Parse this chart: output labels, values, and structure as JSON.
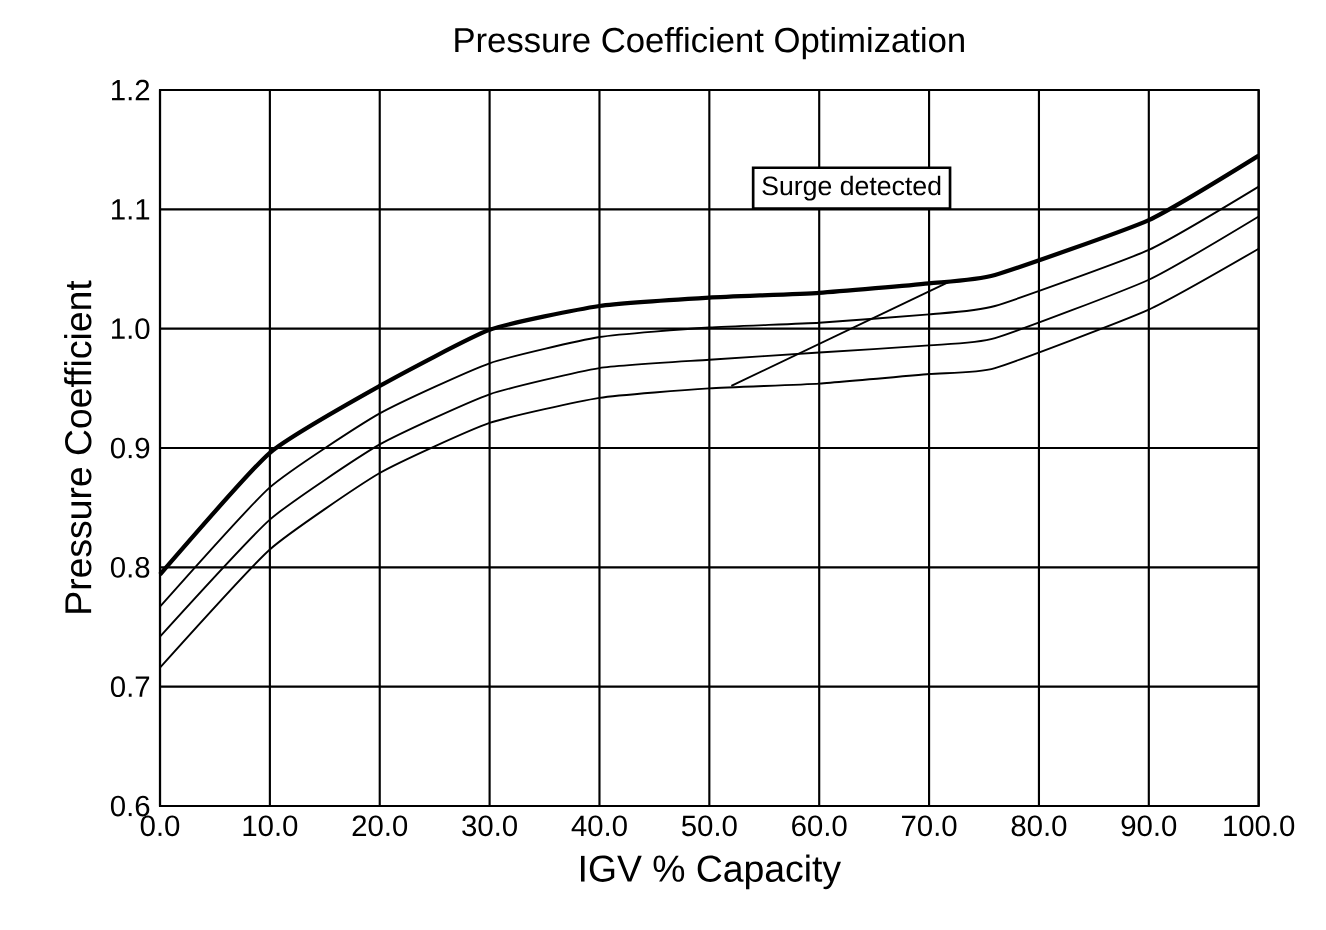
{
  "chart_data": {
    "type": "line",
    "title": "Pressure Coefficient Optimization",
    "xlabel": "IGV % Capacity",
    "ylabel": "Pressure Coefficient",
    "x": [
      0,
      10,
      20,
      30,
      40,
      50,
      60,
      70,
      76,
      90,
      100
    ],
    "series": [
      {
        "color": "#000000",
        "values": [
          0.794,
          0.896,
          0.952,
          0.999,
          1.019,
          1.026,
          1.03,
          1.038,
          1.045,
          1.091,
          1.145
        ]
      },
      {
        "color": "#000000",
        "values": [
          0.767,
          0.867,
          0.929,
          0.971,
          0.993,
          1.001,
          1.005,
          1.012,
          1.019,
          1.066,
          1.119
        ]
      },
      {
        "color": "#000000",
        "values": [
          0.742,
          0.84,
          0.903,
          0.945,
          0.967,
          0.974,
          0.98,
          0.986,
          0.992,
          1.041,
          1.094
        ]
      },
      {
        "color": "#000000",
        "values": [
          0.716,
          0.815,
          0.879,
          0.921,
          0.942,
          0.95,
          0.954,
          0.962,
          0.967,
          1.016,
          1.067
        ]
      },
      {
        "type": "line",
        "color": "#000000",
        "x": [
          52,
          72
        ],
        "values": [
          0.952,
          1.04
        ]
      }
    ],
    "xlim": [
      0,
      100
    ],
    "ylim": [
      0.6,
      1.2
    ],
    "xticks": [
      {
        "value": 0,
        "label": "0.0"
      },
      {
        "value": 10,
        "label": "10.0"
      },
      {
        "value": 20,
        "label": "20.0"
      },
      {
        "value": 30,
        "label": "30.0"
      },
      {
        "value": 40,
        "label": "40.0"
      },
      {
        "value": 50,
        "label": "50.0"
      },
      {
        "value": 60,
        "label": "60.0"
      },
      {
        "value": 70,
        "label": "70.0"
      },
      {
        "value": 80,
        "label": "80.0"
      },
      {
        "value": 90,
        "label": "90.0"
      },
      {
        "value": 100,
        "label": "100.0"
      }
    ],
    "yticks": [
      {
        "value": 0.6,
        "label": "0.6"
      },
      {
        "value": 0.7,
        "label": "0.7"
      },
      {
        "value": 0.8,
        "label": "0.8"
      },
      {
        "value": 0.9,
        "label": "0.9"
      },
      {
        "value": 1.0,
        "label": "1.0"
      },
      {
        "value": 1.1,
        "label": "1.1"
      },
      {
        "value": 1.2,
        "label": "1.2"
      }
    ],
    "grid": true,
    "marker": "none",
    "line_style": "solid",
    "annotations": [
      {
        "text": "Surge detected",
        "x": 73,
        "y": 1.044
      }
    ]
  }
}
